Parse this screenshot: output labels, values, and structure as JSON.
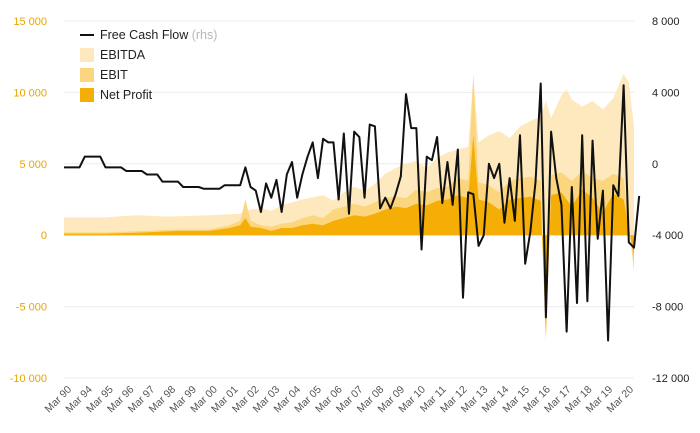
{
  "chart_data": {
    "type": "area",
    "legend": [
      {
        "label": "Free Cash Flow",
        "suffix": "(rhs)",
        "kind": "line",
        "color": "#111111"
      },
      {
        "label": "EBITDA",
        "kind": "area",
        "color": "#fde9bd"
      },
      {
        "label": "EBIT",
        "kind": "area",
        "color": "#fbd67e"
      },
      {
        "label": "Net Profit",
        "kind": "area",
        "color": "#f5ae05"
      }
    ],
    "legend_position": "top-left",
    "left_axis": {
      "min": -10000,
      "max": 15000,
      "ticks": [
        -10000,
        -5000,
        0,
        5000,
        10000,
        15000
      ],
      "tick_labels": [
        "-10 000",
        "-5 000",
        "0",
        "5 000",
        "10 000",
        "15 000"
      ],
      "color": "#e8a500"
    },
    "right_axis": {
      "min": -12000,
      "max": 8000,
      "ticks": [
        -12000,
        -8000,
        -4000,
        0,
        4000,
        8000
      ],
      "tick_labels": [
        "-12 000",
        "-8 000",
        "-4 000",
        "0",
        "4 000",
        "8 000"
      ],
      "color": "#222222"
    },
    "x_labels": [
      "Mar 90",
      "Mar 94",
      "Mar 95",
      "Mar 96",
      "Mar 97",
      "Mar 98",
      "Mar 99",
      "Mar 00",
      "Mar 01",
      "Mar 02",
      "Mar 03",
      "Mar 04",
      "Mar 05",
      "Mar 06",
      "Mar 07",
      "Mar 08",
      "Mar 09",
      "Mar 10",
      "Mar 11",
      "Mar 12",
      "Mar 13",
      "Mar 14",
      "Mar 15",
      "Mar 16",
      "Mar 17",
      "Mar 18",
      "Mar 19",
      "Mar 20"
    ],
    "x_period_count": 110,
    "grid": "horizontal",
    "series": [
      {
        "name": "EBITDA",
        "axis": "left",
        "color": "#fde9bd",
        "points": [
          [
            0,
            1250
          ],
          [
            8,
            1250
          ],
          [
            14,
            1400
          ],
          [
            20,
            1300
          ],
          [
            28,
            1400
          ],
          [
            34,
            1500
          ],
          [
            36,
            1800
          ],
          [
            38,
            1900
          ],
          [
            40,
            1700
          ],
          [
            42,
            2100
          ],
          [
            46,
            2500
          ],
          [
            50,
            2800
          ],
          [
            52,
            2400
          ],
          [
            54,
            3000
          ],
          [
            56,
            3400
          ],
          [
            58,
            3100
          ],
          [
            60,
            3600
          ],
          [
            62,
            4300
          ],
          [
            64,
            4700
          ],
          [
            66,
            5000
          ],
          [
            68,
            5200
          ],
          [
            70,
            4700
          ],
          [
            72,
            5400
          ],
          [
            74,
            5800
          ],
          [
            76,
            6000
          ],
          [
            78,
            6200
          ],
          [
            79,
            11200
          ],
          [
            80,
            6500
          ],
          [
            82,
            7000
          ],
          [
            84,
            7300
          ],
          [
            86,
            6800
          ],
          [
            88,
            7600
          ],
          [
            90,
            8000
          ],
          [
            92,
            8300
          ],
          [
            93,
            9400
          ],
          [
            94,
            8200
          ],
          [
            96,
            9800
          ],
          [
            97,
            10200
          ],
          [
            98,
            9500
          ],
          [
            100,
            9000
          ],
          [
            102,
            9400
          ],
          [
            104,
            8800
          ],
          [
            106,
            9600
          ],
          [
            108,
            11300
          ],
          [
            109,
            10700
          ],
          [
            110,
            7600
          ]
        ]
      },
      {
        "name": "EBIT",
        "axis": "left",
        "color": "#fbd67e",
        "points": [
          [
            0,
            200
          ],
          [
            8,
            200
          ],
          [
            16,
            300
          ],
          [
            22,
            400
          ],
          [
            28,
            400
          ],
          [
            32,
            700
          ],
          [
            34,
            1000
          ],
          [
            35,
            2500
          ],
          [
            36,
            1000
          ],
          [
            38,
            700
          ],
          [
            40,
            600
          ],
          [
            42,
            800
          ],
          [
            44,
            900
          ],
          [
            46,
            1200
          ],
          [
            48,
            1400
          ],
          [
            50,
            1200
          ],
          [
            52,
            1800
          ],
          [
            54,
            2000
          ],
          [
            56,
            2200
          ],
          [
            58,
            2000
          ],
          [
            60,
            2300
          ],
          [
            62,
            2600
          ],
          [
            64,
            2700
          ],
          [
            66,
            2600
          ],
          [
            68,
            3200
          ],
          [
            70,
            3000
          ],
          [
            72,
            3300
          ],
          [
            74,
            3400
          ],
          [
            76,
            4000
          ],
          [
            78,
            3800
          ],
          [
            79,
            11200
          ],
          [
            80,
            3700
          ],
          [
            82,
            3500
          ],
          [
            84,
            3000
          ],
          [
            86,
            3800
          ],
          [
            88,
            4000
          ],
          [
            90,
            4100
          ],
          [
            92,
            3800
          ],
          [
            93,
            -7500
          ],
          [
            94,
            4200
          ],
          [
            96,
            4400
          ],
          [
            98,
            3800
          ],
          [
            100,
            4500
          ],
          [
            102,
            4000
          ],
          [
            104,
            3800
          ],
          [
            106,
            4300
          ],
          [
            108,
            4000
          ],
          [
            110,
            -2500
          ]
        ]
      },
      {
        "name": "Net Profit",
        "axis": "left",
        "color": "#f5ae05",
        "points": [
          [
            0,
            100
          ],
          [
            8,
            100
          ],
          [
            16,
            200
          ],
          [
            22,
            300
          ],
          [
            28,
            300
          ],
          [
            32,
            500
          ],
          [
            34,
            700
          ],
          [
            35,
            1200
          ],
          [
            36,
            600
          ],
          [
            38,
            500
          ],
          [
            40,
            300
          ],
          [
            42,
            500
          ],
          [
            44,
            500
          ],
          [
            46,
            700
          ],
          [
            48,
            800
          ],
          [
            50,
            700
          ],
          [
            52,
            1000
          ],
          [
            54,
            1200
          ],
          [
            56,
            1400
          ],
          [
            58,
            1300
          ],
          [
            60,
            1500
          ],
          [
            62,
            1800
          ],
          [
            64,
            2000
          ],
          [
            66,
            1900
          ],
          [
            68,
            2200
          ],
          [
            70,
            2100
          ],
          [
            72,
            2400
          ],
          [
            74,
            2500
          ],
          [
            76,
            2800
          ],
          [
            78,
            2600
          ],
          [
            79,
            7000
          ],
          [
            80,
            2500
          ],
          [
            82,
            2300
          ],
          [
            84,
            1800
          ],
          [
            86,
            2500
          ],
          [
            88,
            2600
          ],
          [
            90,
            2700
          ],
          [
            92,
            2400
          ],
          [
            93,
            -7000
          ],
          [
            94,
            2800
          ],
          [
            96,
            3000
          ],
          [
            98,
            2000
          ],
          [
            100,
            3200
          ],
          [
            102,
            2600
          ],
          [
            104,
            1600
          ],
          [
            106,
            2900
          ],
          [
            108,
            2500
          ],
          [
            110,
            -1500
          ]
        ]
      },
      {
        "name": "Free Cash Flow",
        "axis": "right",
        "color": "#111111",
        "points": [
          [
            0,
            -200
          ],
          [
            3,
            -200
          ],
          [
            4,
            400
          ],
          [
            7,
            400
          ],
          [
            8,
            -200
          ],
          [
            11,
            -200
          ],
          [
            12,
            -400
          ],
          [
            15,
            -400
          ],
          [
            16,
            -600
          ],
          [
            18,
            -600
          ],
          [
            19,
            -1000
          ],
          [
            22,
            -1000
          ],
          [
            23,
            -1300
          ],
          [
            26,
            -1300
          ],
          [
            27,
            -1400
          ],
          [
            30,
            -1400
          ],
          [
            31,
            -1200
          ],
          [
            34,
            -1200
          ],
          [
            35,
            -200
          ],
          [
            36,
            -1300
          ],
          [
            37,
            -1500
          ],
          [
            38,
            -2700
          ],
          [
            39,
            -1100
          ],
          [
            40,
            -1900
          ],
          [
            41,
            -900
          ],
          [
            42,
            -2700
          ],
          [
            43,
            -600
          ],
          [
            44,
            100
          ],
          [
            45,
            -1900
          ],
          [
            46,
            -600
          ],
          [
            47,
            400
          ],
          [
            48,
            1200
          ],
          [
            49,
            -800
          ],
          [
            50,
            1400
          ],
          [
            51,
            1200
          ],
          [
            52,
            1200
          ],
          [
            53,
            -2000
          ],
          [
            54,
            1700
          ],
          [
            55,
            -2800
          ],
          [
            56,
            1800
          ],
          [
            57,
            1500
          ],
          [
            58,
            -1900
          ],
          [
            59,
            2200
          ],
          [
            60,
            2100
          ],
          [
            61,
            -2500
          ],
          [
            62,
            -1900
          ],
          [
            63,
            -2500
          ],
          [
            64,
            -1700
          ],
          [
            65,
            -700
          ],
          [
            66,
            3900
          ],
          [
            67,
            2000
          ],
          [
            68,
            2000
          ],
          [
            69,
            -4800
          ],
          [
            70,
            400
          ],
          [
            71,
            200
          ],
          [
            72,
            1500
          ],
          [
            73,
            -2200
          ],
          [
            74,
            100
          ],
          [
            75,
            -2300
          ],
          [
            76,
            800
          ],
          [
            77,
            -7500
          ],
          [
            78,
            -1600
          ],
          [
            79,
            -1700
          ],
          [
            80,
            -4600
          ],
          [
            81,
            -4000
          ],
          [
            82,
            0
          ],
          [
            83,
            -800
          ],
          [
            84,
            0
          ],
          [
            85,
            -3300
          ],
          [
            86,
            -800
          ],
          [
            87,
            -3200
          ],
          [
            88,
            1600
          ],
          [
            89,
            -5600
          ],
          [
            90,
            -3800
          ],
          [
            91,
            -1000
          ],
          [
            92,
            4500
          ],
          [
            93,
            -8600
          ],
          [
            94,
            1800
          ],
          [
            95,
            -800
          ],
          [
            96,
            -2300
          ],
          [
            97,
            -9400
          ],
          [
            98,
            -1300
          ],
          [
            99,
            -7800
          ],
          [
            100,
            1600
          ],
          [
            101,
            -7700
          ],
          [
            102,
            1300
          ],
          [
            103,
            -4200
          ],
          [
            104,
            -1500
          ],
          [
            105,
            -9900
          ],
          [
            106,
            -1200
          ],
          [
            107,
            -1800
          ],
          [
            108,
            4400
          ],
          [
            109,
            -4400
          ],
          [
            110,
            -4700
          ],
          [
            111,
            -1800
          ]
        ]
      }
    ]
  }
}
